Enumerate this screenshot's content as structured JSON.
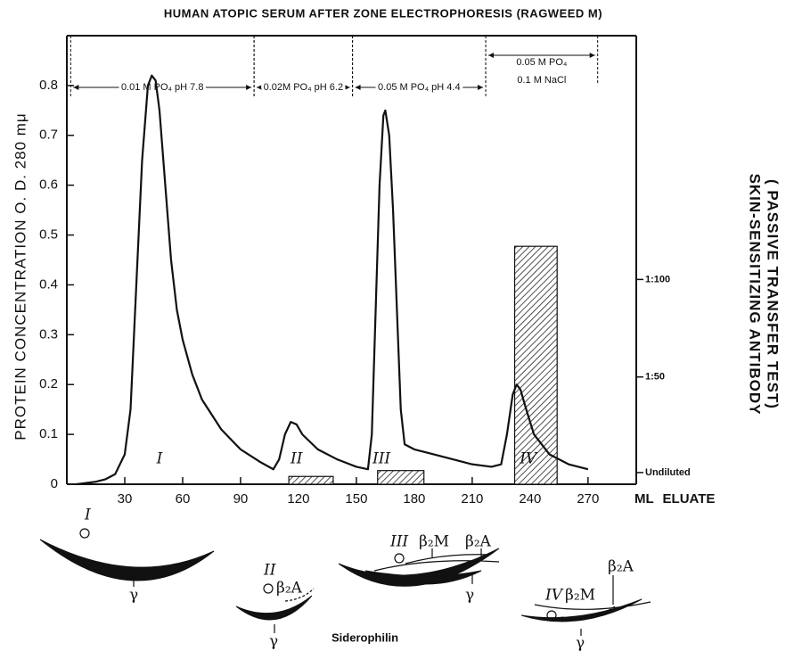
{
  "chart_data": {
    "type": "line",
    "title": "HUMAN ATOPIC SERUM AFTER ZONE ELECTROPHORESIS (RAGWEED  M)",
    "x_label": "ML  ELUATE",
    "y_label": "PROTEIN CONCENTRATION  O. D. 280 mμ",
    "y2_label": [
      "SKIN-SENSITIZING  ANTIBODY",
      "( PASSIVE TRANSFER TEST)"
    ],
    "x": [
      5,
      15,
      20,
      25,
      30,
      33,
      36,
      39,
      42,
      44,
      46,
      48,
      51,
      54,
      57,
      60,
      65,
      70,
      80,
      90,
      100,
      107,
      110,
      113,
      116,
      119,
      122,
      130,
      140,
      150,
      156,
      158,
      160,
      162,
      164,
      165,
      167,
      169,
      171,
      173,
      175,
      180,
      190,
      200,
      210,
      220,
      225,
      228,
      231,
      233,
      235,
      238,
      242,
      250,
      260,
      270
    ],
    "series": [
      {
        "color": "#111111",
        "values": [
          0,
          0.005,
          0.01,
          0.02,
          0.06,
          0.15,
          0.4,
          0.65,
          0.8,
          0.82,
          0.81,
          0.75,
          0.6,
          0.45,
          0.35,
          0.29,
          0.22,
          0.17,
          0.11,
          0.07,
          0.045,
          0.03,
          0.05,
          0.1,
          0.125,
          0.12,
          0.1,
          0.07,
          0.05,
          0.035,
          0.03,
          0.1,
          0.35,
          0.6,
          0.74,
          0.75,
          0.7,
          0.55,
          0.35,
          0.15,
          0.08,
          0.07,
          0.06,
          0.05,
          0.04,
          0.035,
          0.04,
          0.1,
          0.18,
          0.2,
          0.19,
          0.15,
          0.1,
          0.06,
          0.04,
          0.03
        ]
      }
    ],
    "xlim": [
      0,
      295
    ],
    "xticks": [
      30,
      60,
      90,
      120,
      150,
      180,
      210,
      240,
      270
    ],
    "ylim": [
      0,
      0.9
    ],
    "yticks": [
      0,
      0.1,
      0.2,
      0.3,
      0.4,
      0.5,
      0.6,
      0.7,
      0.8
    ],
    "y2lim": [
      -5,
      225
    ],
    "y2ticks": [
      {
        "value": 1,
        "label": "Undiluted"
      },
      {
        "value": 50,
        "label": "1:50"
      },
      {
        "value": 100,
        "label": "1:100"
      }
    ],
    "bars": {
      "axis": "y2",
      "x_start": [
        115,
        161,
        232
      ],
      "x_end": [
        138,
        185,
        254
      ],
      "values": [
        -1,
        2,
        117
      ]
    },
    "buffers": [
      {
        "label": [
          "0.01 M  PO₄ pH 7.8"
        ],
        "start": 2,
        "end": 97
      },
      {
        "label": [
          "0.02M PO₄ pH 6.2"
        ],
        "start": 97,
        "end": 148
      },
      {
        "label": [
          "0.05 M PO₄ pH 4.4"
        ],
        "start": 148,
        "end": 217
      },
      {
        "label": [
          "0.05 M PO₄",
          "0.1 M NaCl"
        ],
        "start": 217,
        "end": 275
      }
    ],
    "peak_labels": [
      "I",
      "II",
      "III",
      "IV"
    ]
  },
  "diagrams": [
    {
      "labels": [
        "I",
        "γ"
      ]
    },
    {
      "labels": [
        "II",
        "β₂A",
        "γ"
      ]
    },
    {
      "labels": [
        "Siderophilin"
      ]
    },
    {
      "labels": [
        "III",
        "β₂M",
        "β₂A",
        "γ"
      ]
    },
    {
      "labels": [
        "IV",
        "β₂M",
        "β₂A",
        "γ"
      ]
    }
  ]
}
